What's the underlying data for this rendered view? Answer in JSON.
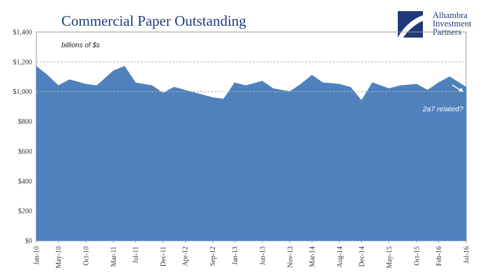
{
  "chart_data": {
    "type": "area",
    "title": "Commercial Paper Outstanding",
    "unit_label": "billions of $s",
    "annotation": "2a7 related?",
    "ylim": [
      0,
      1400
    ],
    "yticks": [
      0,
      200,
      400,
      600,
      800,
      1000,
      1200,
      1400
    ],
    "ytick_labels": [
      "$0",
      "$200",
      "$400",
      "$600",
      "$800",
      "$1,000",
      "$1,200",
      "$1,400"
    ],
    "reference_lines": [
      1000,
      1200
    ],
    "xticks": [
      "Jan-10",
      "May-10",
      "Oct-10",
      "Mar-11",
      "Jul-11",
      "Dec-11",
      "Apr-12",
      "Sep-12",
      "Jan-13",
      "Jun-13",
      "Nov-13",
      "Mar-14",
      "Aug-14",
      "Dec-14",
      "May-15",
      "Oct-15",
      "Feb-16",
      "Jul-16"
    ],
    "series": [
      {
        "x": [
          "Jan-10",
          "Mar-10",
          "May-10",
          "Jul-10",
          "Oct-10",
          "Dec-10",
          "Mar-11",
          "May-11",
          "Jul-11",
          "Oct-11",
          "Dec-11",
          "Feb-12",
          "Apr-12",
          "Jun-12",
          "Sep-12",
          "Nov-12",
          "Jan-13",
          "Mar-13",
          "Jun-13",
          "Aug-13",
          "Nov-13",
          "Jan-14",
          "Mar-14",
          "May-14",
          "Aug-14",
          "Oct-14",
          "Dec-14",
          "Feb-15",
          "May-15",
          "Jul-15",
          "Oct-15",
          "Dec-15",
          "Feb-16",
          "Apr-16",
          "Jul-16"
        ],
        "values": [
          1170,
          1110,
          1040,
          1080,
          1050,
          1040,
          1140,
          1170,
          1060,
          1040,
          990,
          1030,
          1010,
          990,
          960,
          950,
          1060,
          1040,
          1070,
          1020,
          1000,
          1050,
          1110,
          1060,
          1050,
          1030,
          940,
          1060,
          1020,
          1040,
          1050,
          1010,
          1060,
          1100,
          1030
        ],
        "color": "#4f81bd"
      }
    ]
  }
}
